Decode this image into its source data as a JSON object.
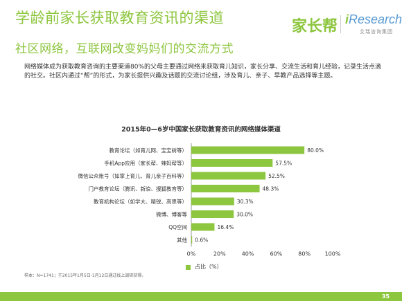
{
  "header": {
    "title": "学龄前家长获取教育资讯的渠道",
    "subtitle": "社区网络，互联网改变妈妈们的交流方式",
    "logo_jiazhangbang": "家长帮",
    "logo_iresearch_i": "i",
    "logo_iresearch_rest": "Research",
    "logo_iresearch_sub": "艾瑞咨询集团"
  },
  "body_text": "网络媒体成为获取教育咨询的主要渠道80%的父母主要通过网络来获取育儿知识，家长分享、交流生活和育儿经验，记录生活点滴的社交。社区内通过“帮”的形式，为家长提供兴趣及话题的交流讨论组，涉及育儿、亲子、早教产品选择等主题。",
  "chart_data": {
    "type": "bar",
    "orientation": "horizontal",
    "title": "2015年0—6岁中国家长获取教育资讯的网络媒体渠道",
    "categories": [
      "教育论坛（如育儿网、宝宝树等）",
      "手机App应用（家长帮、辣妈帮等）",
      "微信公众账号（如掌上育儿、育儿亲子百科等）",
      "门户教育论坛（腾讯、新浪、搜狐教育等）",
      "教育机构论坛（如学大、精锐、高思等）",
      "微博、博客等",
      "QQ空间",
      "其他"
    ],
    "series": [
      {
        "name": "占比（%）",
        "values": [
          80.0,
          57.5,
          52.5,
          48.3,
          30.3,
          30.0,
          16.4,
          0.6
        ],
        "value_labels": [
          "80.0%",
          "57.5%",
          "52.5%",
          "48.3%",
          "30.3%",
          "30.0%",
          "16.4%",
          "0.6%"
        ]
      }
    ],
    "xlim": [
      0,
      100
    ],
    "x_ticks": [
      "0%",
      "20%",
      "40%",
      "60%",
      "80%",
      "100%"
    ],
    "grid": false,
    "legend_position": "bottom",
    "bar_color": "#8dc63f"
  },
  "source_note": "样本：N=1741；于2015年1月5日-1月12日通过线上调研获得。",
  "footer": {
    "page_number": "35"
  },
  "colors": {
    "accent": "#8dc63f",
    "brand_blue": "#5a9bd4"
  }
}
